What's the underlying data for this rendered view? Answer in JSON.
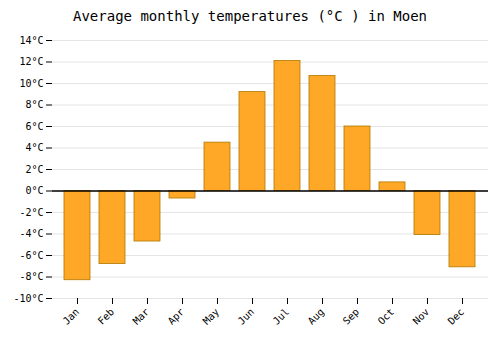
{
  "chart_data": {
    "type": "bar",
    "title": "Average monthly temperatures (°C ) in Moen",
    "categories": [
      "Jan",
      "Feb",
      "Mar",
      "Apr",
      "May",
      "Jun",
      "Jul",
      "Aug",
      "Sep",
      "Oct",
      "Nov",
      "Dec"
    ],
    "values": [
      -8.3,
      -6.8,
      -4.7,
      -0.7,
      4.5,
      9.2,
      12.1,
      10.7,
      6.0,
      0.8,
      -4.1,
      -7.1
    ],
    "color": "#FFA726",
    "ylim": [
      -10,
      14
    ],
    "yticks": [
      {
        "value": -10,
        "label": "-10°C"
      },
      {
        "value": -8,
        "label": "-8°C"
      },
      {
        "value": -6,
        "label": "-6°C"
      },
      {
        "value": -4,
        "label": "-4°C"
      },
      {
        "value": -2,
        "label": "-2°C"
      },
      {
        "value": 0,
        "label": "0°C"
      },
      {
        "value": 2,
        "label": "2°C"
      },
      {
        "value": 4,
        "label": "4°C"
      },
      {
        "value": 6,
        "label": "6°C"
      },
      {
        "value": 8,
        "label": "8°C"
      },
      {
        "value": 10,
        "label": "10°C"
      },
      {
        "value": 12,
        "label": "12°C"
      },
      {
        "value": 14,
        "label": "14°C"
      }
    ],
    "grid": true
  }
}
